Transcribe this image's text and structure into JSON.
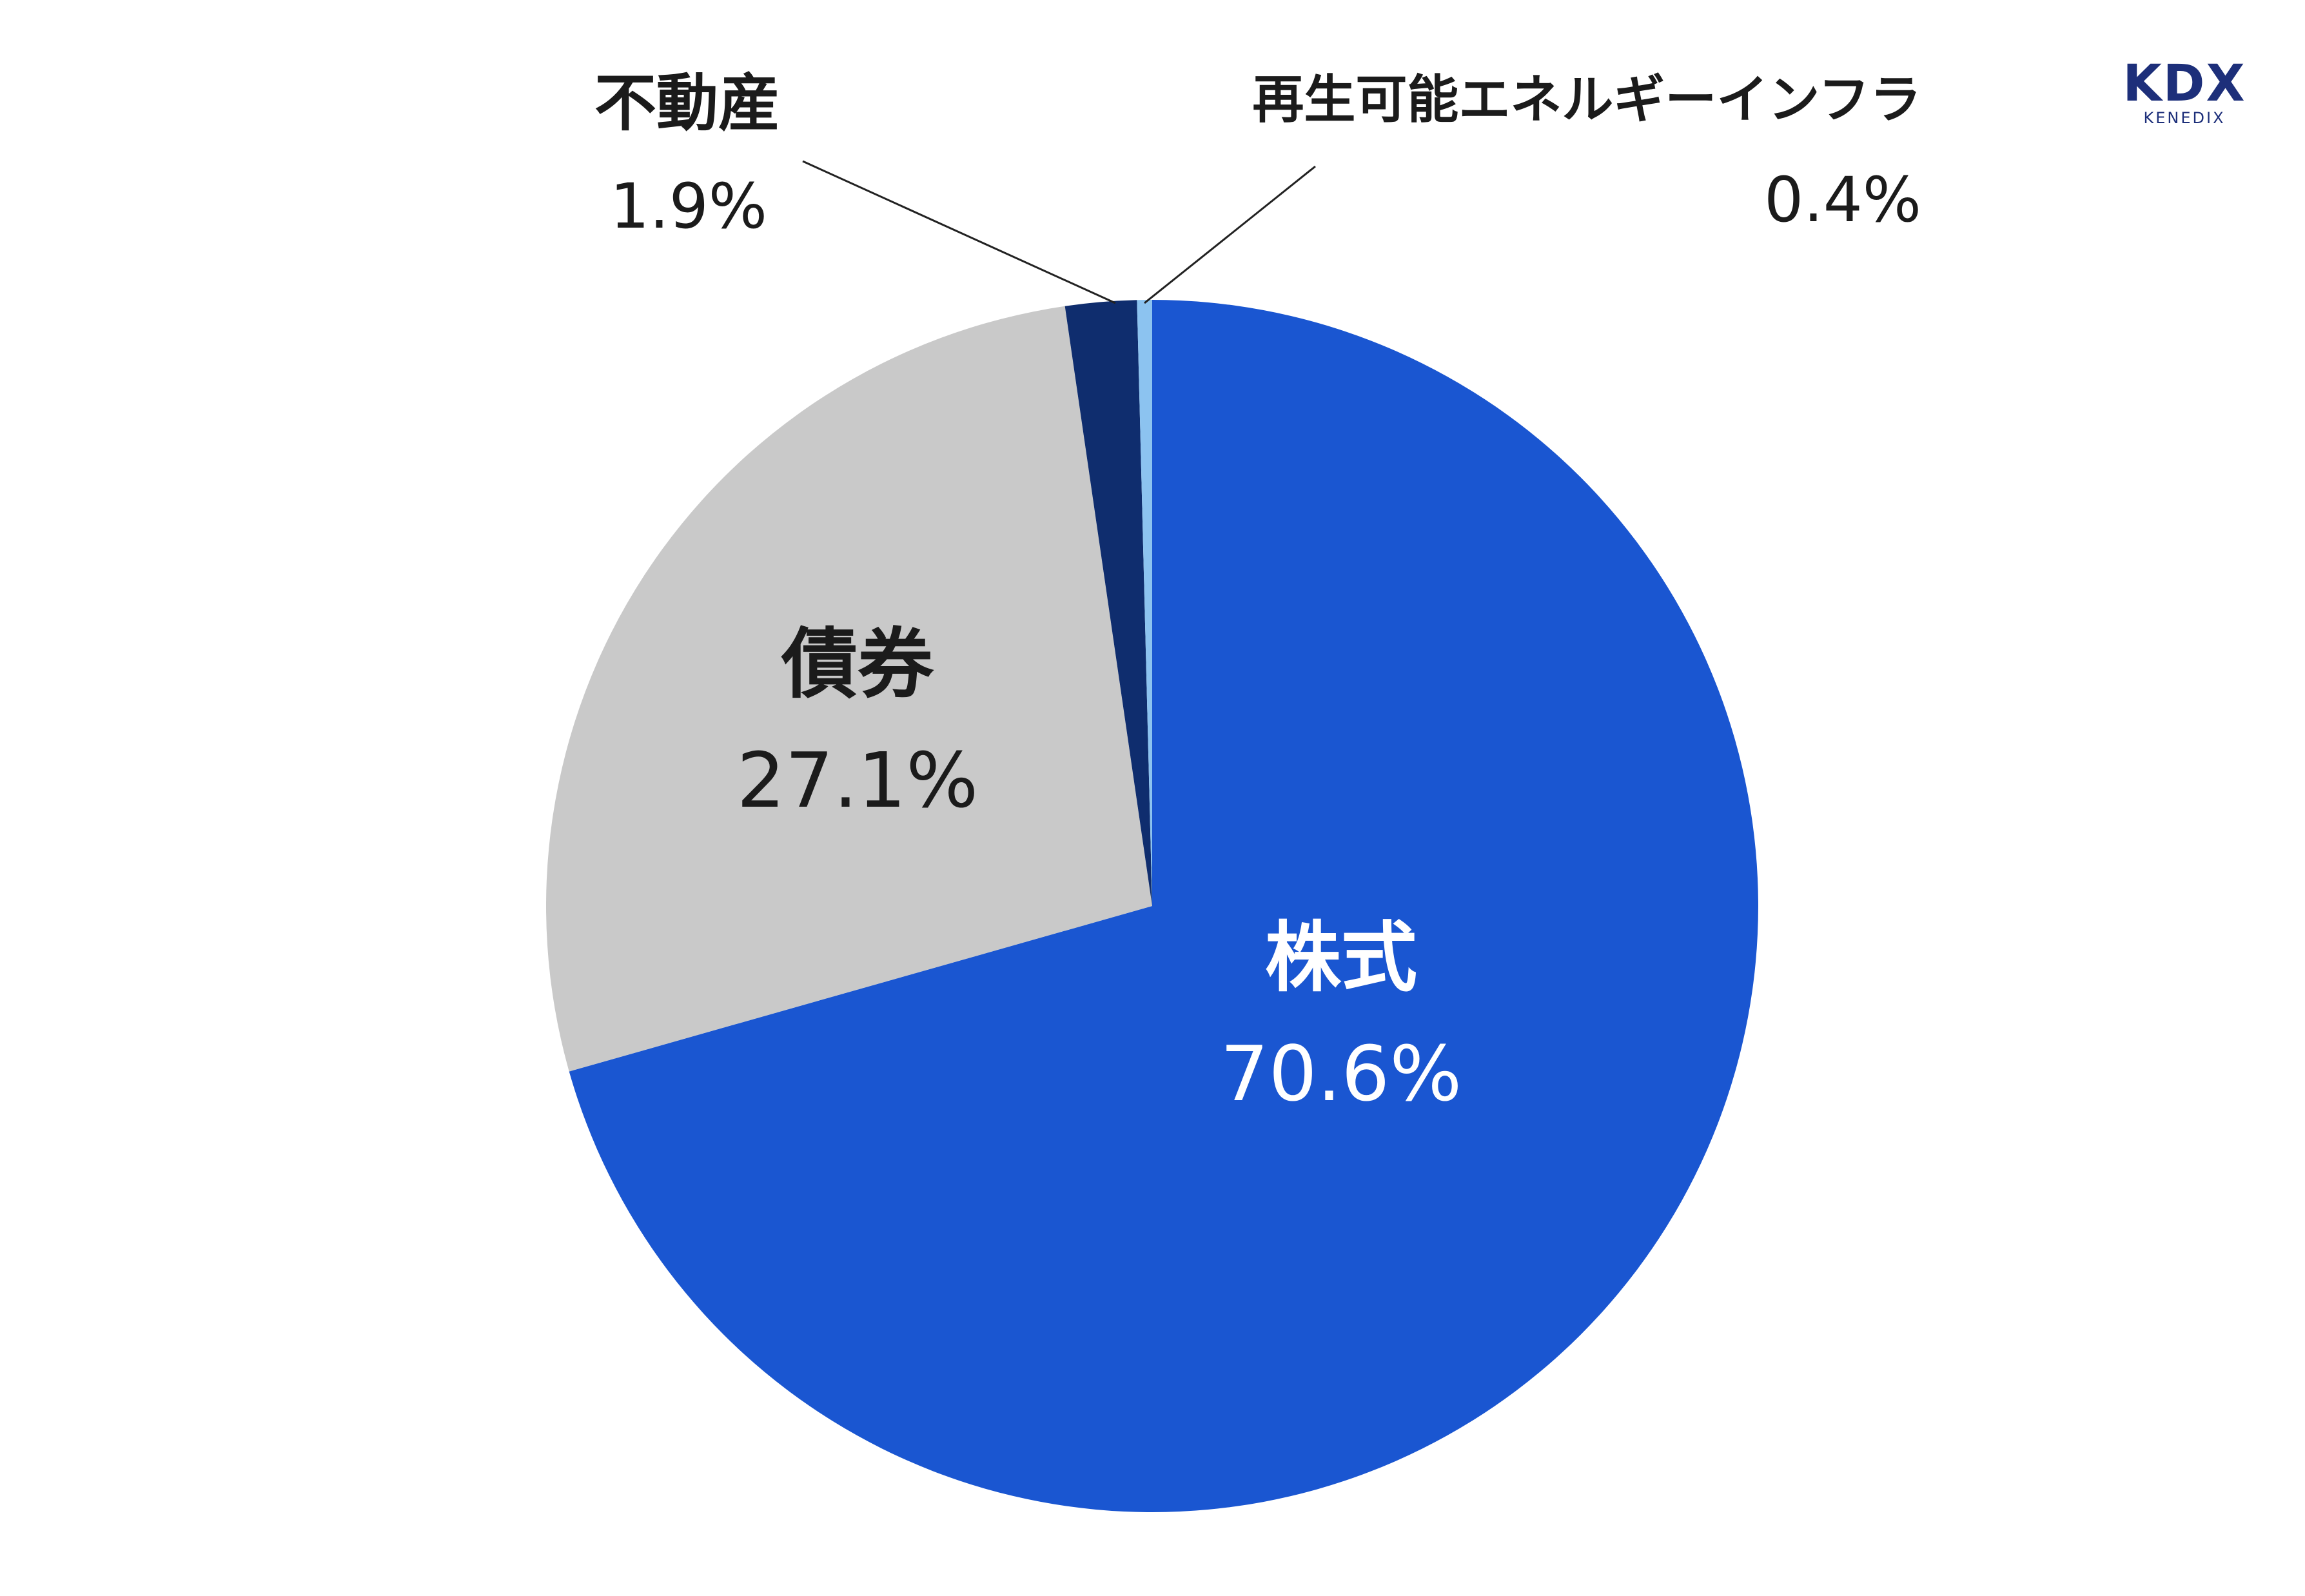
{
  "chart_data": {
    "type": "pie",
    "title": "",
    "start_angle_deg": 0,
    "direction": "clockwise",
    "slices": [
      {
        "label": "株式",
        "value": 70.6,
        "value_label": "70.6%",
        "color": "#1a56d1"
      },
      {
        "label": "債券",
        "value": 27.1,
        "value_label": "27.1%",
        "color": "#c9c9c9"
      },
      {
        "label": "不動産",
        "value": 1.9,
        "value_label": "1.9%",
        "color": "#0f2d6e"
      },
      {
        "label": "再生可能エネルギーインフラ",
        "value": 0.4,
        "value_label": "0.4%",
        "color": "#8cc3f0"
      }
    ]
  },
  "logo": {
    "main": "KDX",
    "sub": "KENEDIX",
    "color": "#1d2f7a"
  }
}
